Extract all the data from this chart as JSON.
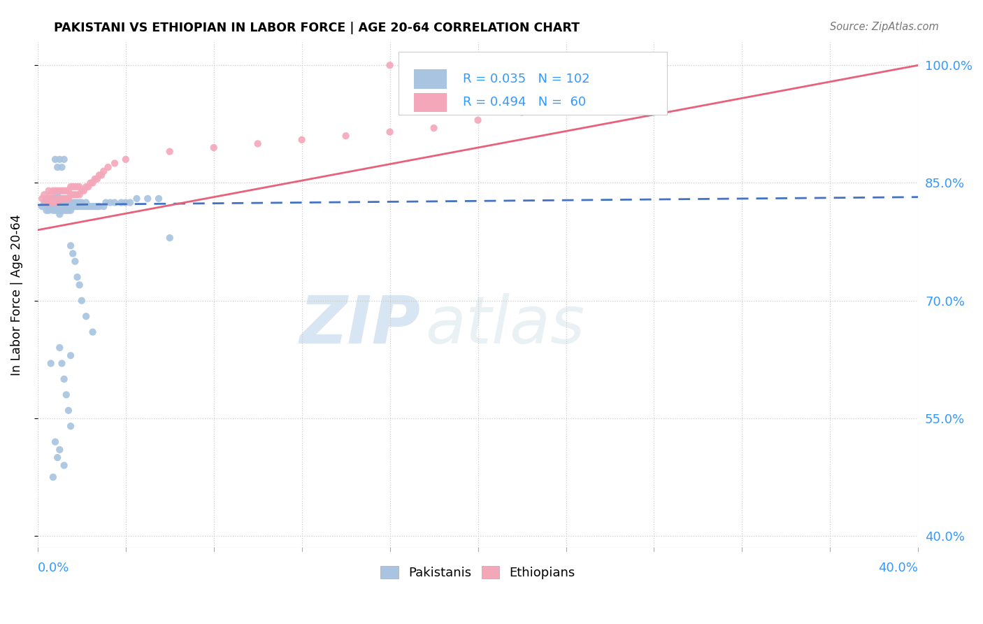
{
  "title": "PAKISTANI VS ETHIOPIAN IN LABOR FORCE | AGE 20-64 CORRELATION CHART",
  "source": "Source: ZipAtlas.com",
  "ylabel": "In Labor Force | Age 20-64",
  "ytick_labels": [
    "100.0%",
    "85.0%",
    "70.0%",
    "55.0%",
    "40.0%"
  ],
  "ytick_values": [
    1.0,
    0.85,
    0.7,
    0.55,
    0.4
  ],
  "xlim": [
    0.0,
    0.4
  ],
  "ylim": [
    0.385,
    1.03
  ],
  "pakistani_color": "#a8c4e0",
  "ethiopian_color": "#f4a7b9",
  "pakistani_line_color": "#4472c4",
  "ethiopian_line_color": "#e8607a",
  "legend_blue": "#3399ff",
  "pakistani_R": 0.035,
  "pakistani_N": 102,
  "ethiopian_R": 0.494,
  "ethiopian_N": 60,
  "watermark_zip": "ZIP",
  "watermark_atlas": "atlas",
  "pk_x": [
    0.002,
    0.003,
    0.004,
    0.004,
    0.005,
    0.005,
    0.005,
    0.006,
    0.006,
    0.006,
    0.007,
    0.007,
    0.007,
    0.007,
    0.008,
    0.008,
    0.008,
    0.008,
    0.009,
    0.009,
    0.009,
    0.009,
    0.009,
    0.01,
    0.01,
    0.01,
    0.01,
    0.01,
    0.011,
    0.011,
    0.011,
    0.011,
    0.012,
    0.012,
    0.012,
    0.012,
    0.013,
    0.013,
    0.013,
    0.013,
    0.014,
    0.014,
    0.014,
    0.015,
    0.015,
    0.015,
    0.016,
    0.016,
    0.017,
    0.017,
    0.018,
    0.018,
    0.019,
    0.019,
    0.02,
    0.02,
    0.021,
    0.022,
    0.022,
    0.023,
    0.024,
    0.025,
    0.026,
    0.027,
    0.028,
    0.03,
    0.031,
    0.033,
    0.035,
    0.038,
    0.04,
    0.042,
    0.045,
    0.05,
    0.055,
    0.06,
    0.015,
    0.016,
    0.017,
    0.018,
    0.019,
    0.02,
    0.022,
    0.025,
    0.01,
    0.011,
    0.012,
    0.013,
    0.014,
    0.015,
    0.009,
    0.008,
    0.007,
    0.006,
    0.01,
    0.012,
    0.015,
    0.008,
    0.009,
    0.01,
    0.011,
    0.012
  ],
  "pk_y": [
    0.82,
    0.825,
    0.815,
    0.83,
    0.82,
    0.815,
    0.83,
    0.82,
    0.825,
    0.83,
    0.815,
    0.82,
    0.825,
    0.83,
    0.815,
    0.82,
    0.825,
    0.83,
    0.815,
    0.82,
    0.825,
    0.83,
    0.835,
    0.81,
    0.815,
    0.82,
    0.825,
    0.83,
    0.815,
    0.82,
    0.825,
    0.83,
    0.815,
    0.82,
    0.825,
    0.83,
    0.815,
    0.82,
    0.825,
    0.83,
    0.815,
    0.82,
    0.825,
    0.815,
    0.82,
    0.825,
    0.82,
    0.825,
    0.82,
    0.825,
    0.82,
    0.825,
    0.82,
    0.825,
    0.82,
    0.825,
    0.82,
    0.82,
    0.825,
    0.82,
    0.82,
    0.82,
    0.82,
    0.82,
    0.82,
    0.82,
    0.825,
    0.825,
    0.825,
    0.825,
    0.825,
    0.825,
    0.83,
    0.83,
    0.83,
    0.78,
    0.77,
    0.76,
    0.75,
    0.73,
    0.72,
    0.7,
    0.68,
    0.66,
    0.64,
    0.62,
    0.6,
    0.58,
    0.56,
    0.54,
    0.5,
    0.52,
    0.475,
    0.62,
    0.51,
    0.49,
    0.63,
    0.88,
    0.87,
    0.88,
    0.87,
    0.88
  ],
  "et_x": [
    0.002,
    0.003,
    0.004,
    0.005,
    0.005,
    0.006,
    0.006,
    0.007,
    0.007,
    0.008,
    0.008,
    0.009,
    0.009,
    0.01,
    0.01,
    0.011,
    0.011,
    0.012,
    0.012,
    0.013,
    0.013,
    0.014,
    0.014,
    0.015,
    0.015,
    0.016,
    0.016,
    0.017,
    0.017,
    0.018,
    0.018,
    0.019,
    0.019,
    0.02,
    0.021,
    0.022,
    0.023,
    0.024,
    0.025,
    0.026,
    0.027,
    0.028,
    0.029,
    0.03,
    0.032,
    0.035,
    0.04,
    0.06,
    0.08,
    0.1,
    0.12,
    0.14,
    0.16,
    0.18,
    0.2,
    0.22,
    0.24,
    0.16,
    0.18,
    0.2
  ],
  "et_y": [
    0.83,
    0.835,
    0.825,
    0.83,
    0.84,
    0.825,
    0.835,
    0.825,
    0.84,
    0.83,
    0.84,
    0.825,
    0.84,
    0.83,
    0.84,
    0.83,
    0.84,
    0.83,
    0.84,
    0.83,
    0.84,
    0.83,
    0.84,
    0.835,
    0.845,
    0.835,
    0.845,
    0.835,
    0.845,
    0.835,
    0.845,
    0.835,
    0.845,
    0.84,
    0.84,
    0.845,
    0.845,
    0.85,
    0.85,
    0.855,
    0.855,
    0.86,
    0.86,
    0.865,
    0.87,
    0.875,
    0.88,
    0.89,
    0.895,
    0.9,
    0.905,
    0.91,
    0.915,
    0.92,
    0.93,
    0.94,
    0.95,
    1.0,
    1.0,
    0.95
  ],
  "pk_line_x": [
    0.0,
    0.4
  ],
  "pk_line_y": [
    0.822,
    0.832
  ],
  "et_line_x": [
    0.0,
    0.4
  ],
  "et_line_y": [
    0.79,
    1.0
  ]
}
